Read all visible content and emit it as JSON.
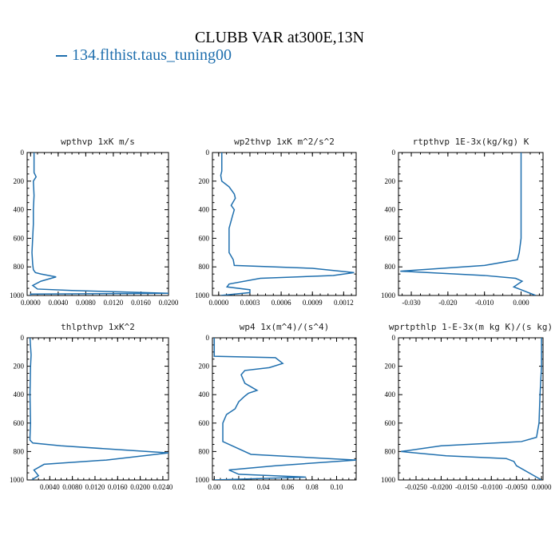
{
  "title": "CLUBB VAR at300E,13N",
  "legend": {
    "label": "134.flthist.taus_tuning00",
    "color": "#1f6fae"
  },
  "chart_data": [
    {
      "type": "line",
      "title": "wpthvp  1xK m/s",
      "xlim": [
        -0.0005,
        0.02
      ],
      "ylim": [
        0,
        1000
      ],
      "xticks": [
        0.0,
        0.004,
        0.008,
        0.012,
        0.016,
        0.02
      ],
      "xtick_labels": [
        "0.0000",
        "0.0040",
        "0.0080",
        "0.0120",
        "0.0160",
        "0.0200"
      ],
      "yticks": [
        0,
        200,
        400,
        600,
        800,
        1000
      ],
      "series": [
        {
          "color": "#1f6fae",
          "x": [
            0.0005,
            0.0005,
            0.0008,
            0.0004,
            0.0005,
            0.0004,
            0.0004,
            0.0003,
            0.0002,
            0.0003,
            0.0004,
            0.0007,
            0.0015,
            0.0037,
            0.0015,
            0.0003,
            0.001,
            0.006,
            0.013,
            0.02,
            0.0,
            0.0
          ],
          "y": [
            0,
            140,
            170,
            200,
            300,
            400,
            500,
            600,
            700,
            780,
            820,
            840,
            850,
            870,
            900,
            930,
            955,
            965,
            975,
            985,
            990,
            1000
          ]
        }
      ]
    },
    {
      "type": "line",
      "title": "wp2thvp  1xK m^2/s^2",
      "xlim": [
        -6e-05,
        0.00132
      ],
      "ylim": [
        0,
        1000
      ],
      "xticks": [
        0.0,
        0.0003,
        0.0006,
        0.0009,
        0.0012
      ],
      "xtick_labels": [
        "0.0000",
        "0.0003",
        "0.0006",
        "0.0009",
        "0.0012"
      ],
      "yticks": [
        0,
        200,
        400,
        600,
        800,
        1000
      ],
      "series": [
        {
          "color": "#1f6fae",
          "x": [
            3e-05,
            3e-05,
            2e-05,
            3e-05,
            0.0001,
            0.00015,
            0.00016,
            0.00012,
            0.00015,
            0.00013,
            0.0001,
            0.0001,
            0.00014,
            0.00015,
            0.0009,
            0.0013,
            0.0011,
            0.0004,
            0.0001,
            8e-05,
            0.0003,
            0.0003,
            2e-05
          ],
          "y": [
            0,
            130,
            160,
            200,
            240,
            290,
            320,
            370,
            400,
            450,
            530,
            700,
            750,
            790,
            810,
            840,
            860,
            880,
            920,
            940,
            960,
            980,
            1000
          ]
        }
      ]
    },
    {
      "type": "line",
      "title": "rtpthvp  1E-3x(kg/kg) K",
      "xlim": [
        -0.0335,
        0.006
      ],
      "ylim": [
        0,
        1000
      ],
      "xticks": [
        -0.03,
        -0.02,
        -0.01,
        0.0
      ],
      "xtick_labels": [
        "-0.030",
        "-0.020",
        "-0.010",
        "0.000"
      ],
      "yticks": [
        0,
        200,
        400,
        600,
        800,
        1000
      ],
      "series": [
        {
          "color": "#1f6fae",
          "x": [
            0.0,
            0.0,
            0.0,
            0.0,
            -0.0005,
            -0.001,
            -0.01,
            -0.033,
            -0.01,
            -0.0015,
            0.0003,
            -0.002,
            0.0,
            0.004
          ],
          "y": [
            0,
            200,
            400,
            600,
            700,
            750,
            790,
            830,
            860,
            880,
            900,
            940,
            960,
            1000
          ]
        }
      ]
    },
    {
      "type": "line",
      "title": "thlpthvp  1xK^2",
      "xlim": [
        0.0,
        0.025
      ],
      "ylim": [
        0,
        1000
      ],
      "xticks": [
        0.004,
        0.008,
        0.012,
        0.016,
        0.02,
        0.024
      ],
      "xtick_labels": [
        "0.0040",
        "0.0080",
        "0.0120",
        "0.0160",
        "0.0200",
        "0.0240"
      ],
      "yticks": [
        0,
        200,
        400,
        600,
        800,
        1000
      ],
      "series": [
        {
          "color": "#1f6fae",
          "x": [
            0.0005,
            0.0007,
            0.0006,
            0.0005,
            0.0006,
            0.0005,
            0.0005,
            0.001,
            0.006,
            0.025,
            0.014,
            0.003,
            0.0012,
            0.002,
            0.0008
          ],
          "y": [
            0,
            120,
            200,
            400,
            600,
            700,
            720,
            740,
            760,
            810,
            860,
            890,
            930,
            970,
            1000
          ]
        }
      ]
    },
    {
      "type": "line",
      "title": "wp4  1x(m^4)/(s^4)",
      "xlim": [
        -0.0015,
        0.116
      ],
      "ylim": [
        0,
        1000
      ],
      "xticks": [
        0.0,
        0.02,
        0.04,
        0.06,
        0.08,
        0.1
      ],
      "xtick_labels": [
        "0.00",
        "0.02",
        "0.04",
        "0.06",
        "0.08",
        "0.10"
      ],
      "yticks": [
        0,
        200,
        400,
        600,
        800,
        1000
      ],
      "series": [
        {
          "color": "#1f6fae",
          "x": [
            0.0,
            0.0,
            0.05,
            0.056,
            0.045,
            0.025,
            0.022,
            0.025,
            0.035,
            0.028,
            0.025,
            0.02,
            0.017,
            0.01,
            0.007,
            0.007,
            0.03,
            0.116,
            0.05,
            0.012,
            0.02,
            0.075,
            0.0
          ],
          "y": [
            0,
            130,
            140,
            180,
            210,
            230,
            260,
            320,
            370,
            390,
            410,
            450,
            500,
            540,
            600,
            730,
            820,
            860,
            900,
            930,
            960,
            980,
            1000
          ]
        }
      ]
    },
    {
      "type": "line",
      "title": "wprtpthlp  1-E-3x(m kg K)/(s kg)",
      "xlim": [
        -0.0285,
        0.0003
      ],
      "ylim": [
        0,
        1000
      ],
      "xticks": [
        -0.025,
        -0.02,
        -0.015,
        -0.01,
        -0.005,
        0.0
      ],
      "xtick_labels": [
        "-0.0250",
        "-0.0200",
        "-0.0150",
        "-0.0100",
        "-0.0050",
        "0.0000"
      ],
      "yticks": [
        0,
        200,
        400,
        600,
        800,
        1000
      ],
      "series": [
        {
          "color": "#1f6fae",
          "x": [
            0.0,
            0.0,
            -0.0003,
            -0.0005,
            -0.001,
            -0.004,
            -0.02,
            -0.028,
            -0.019,
            -0.007,
            -0.0055,
            -0.005,
            -0.002,
            0.0
          ],
          "y": [
            0,
            200,
            400,
            600,
            700,
            730,
            760,
            800,
            830,
            850,
            870,
            900,
            960,
            1000
          ]
        }
      ]
    }
  ]
}
